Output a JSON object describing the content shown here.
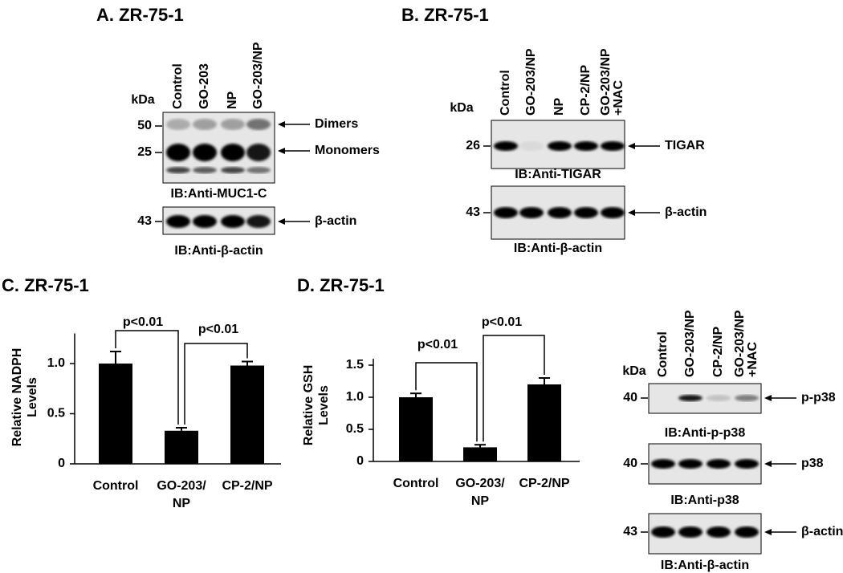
{
  "blots": [
    {
      "title": "A.  ZR-75-1",
      "kda": "kDa",
      "lanes": [
        "Control",
        "GO-203",
        "NP",
        "GO-203/NP"
      ],
      "strips": [
        {
          "markers": [
            "50",
            "25"
          ],
          "targets": [
            "Dimers",
            "Monomers"
          ],
          "caption": "IB:Anti-MUC1-C"
        },
        {
          "markers": [
            "43"
          ],
          "targets": [
            "β-actin"
          ],
          "caption": "IB:Anti-β-actin"
        }
      ]
    },
    {
      "title": "B.  ZR-75-1",
      "kda": "kDa",
      "lanes": [
        "Control",
        "GO-203/NP",
        "NP",
        "CP-2/NP",
        "GO-203/NP +NAC"
      ],
      "strips": [
        {
          "markers": [
            "26"
          ],
          "targets": [
            "TIGAR"
          ],
          "caption": "IB:Anti-TIGAR"
        },
        {
          "markers": [
            "43"
          ],
          "targets": [
            "β-actin"
          ],
          "caption": "IB:Anti-β-actin"
        }
      ]
    },
    {
      "kda": "kDa",
      "lanes": [
        "Control",
        "GO-203/NP",
        "CP-2/NP",
        "GO-203/NP +NAC"
      ],
      "strips": [
        {
          "markers": [
            "40"
          ],
          "targets": [
            "p-p38"
          ],
          "caption": "IB:Anti-p-p38"
        },
        {
          "markers": [
            "40"
          ],
          "targets": [
            "p38"
          ],
          "caption": "IB:Anti-p38"
        },
        {
          "markers": [
            "43"
          ],
          "targets": [
            "β-actin"
          ],
          "caption": "IB:Anti-β-actin"
        }
      ]
    }
  ],
  "chart_data": [
    {
      "type": "bar",
      "title": "C.  ZR-75-1",
      "y_label": "Relative NADPH Levels",
      "categories": [
        "Control",
        "GO-203/NP",
        "CP-2/NP"
      ],
      "values": [
        1.0,
        0.33,
        0.98
      ],
      "errors": [
        0.12,
        0.03,
        0.04
      ],
      "color": "#000000",
      "ylim": [
        0,
        1.3
      ],
      "yticks": [
        0,
        0.5,
        {
          "value": 1,
          "label": "1.0"
        }
      ],
      "annotations": [
        "p<0.01",
        "p<0.01"
      ]
    },
    {
      "type": "bar",
      "title": "D.  ZR-75-1",
      "y_label": "Relative GSH Levels",
      "categories": [
        "Control",
        "GO-203/NP",
        "CP-2/NP"
      ],
      "values": [
        1.0,
        0.22,
        1.2
      ],
      "errors": [
        0.06,
        0.04,
        0.1
      ],
      "color": "#000000",
      "ylim": [
        0,
        1.6
      ],
      "yticks": [
        0,
        0.5,
        {
          "value": 1,
          "label": "1.0"
        },
        1.5
      ],
      "annotations": [
        "p<0.01",
        "p<0.01"
      ]
    }
  ]
}
